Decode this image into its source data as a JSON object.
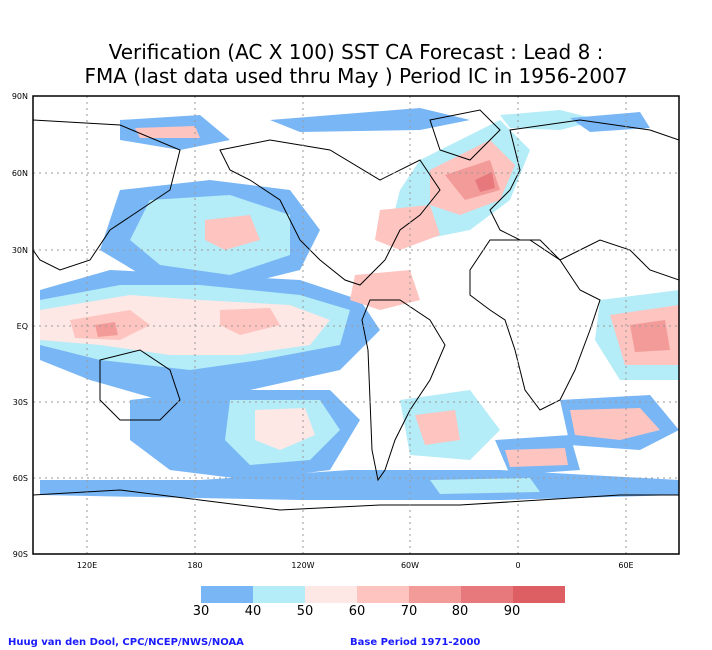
{
  "title": {
    "line1": "Verification (AC X 100) SST CA Forecast : Lead 8 :",
    "line2": "FMA (last data used thru May ) Period IC in 1956-2007"
  },
  "lat_labels": [
    "90N",
    "60N",
    "30N",
    "EQ",
    "30S",
    "60S",
    "90S"
  ],
  "lon_labels": [
    "120E",
    "180",
    "120W",
    "60W",
    "0",
    "60E"
  ],
  "legend": {
    "values": [
      "30",
      "40",
      "50",
      "60",
      "70",
      "80",
      "90"
    ],
    "colors": [
      "#79b6f5",
      "#b4ecf7",
      "#fde8e6",
      "#fdc4c0",
      "#f39b99",
      "#e7797c",
      "#dd5e63"
    ]
  },
  "credit_left": "Huug van den Dool, CPC/NCEP/NWS/NOAA",
  "credit_right": "Base Period 1971-2000"
}
